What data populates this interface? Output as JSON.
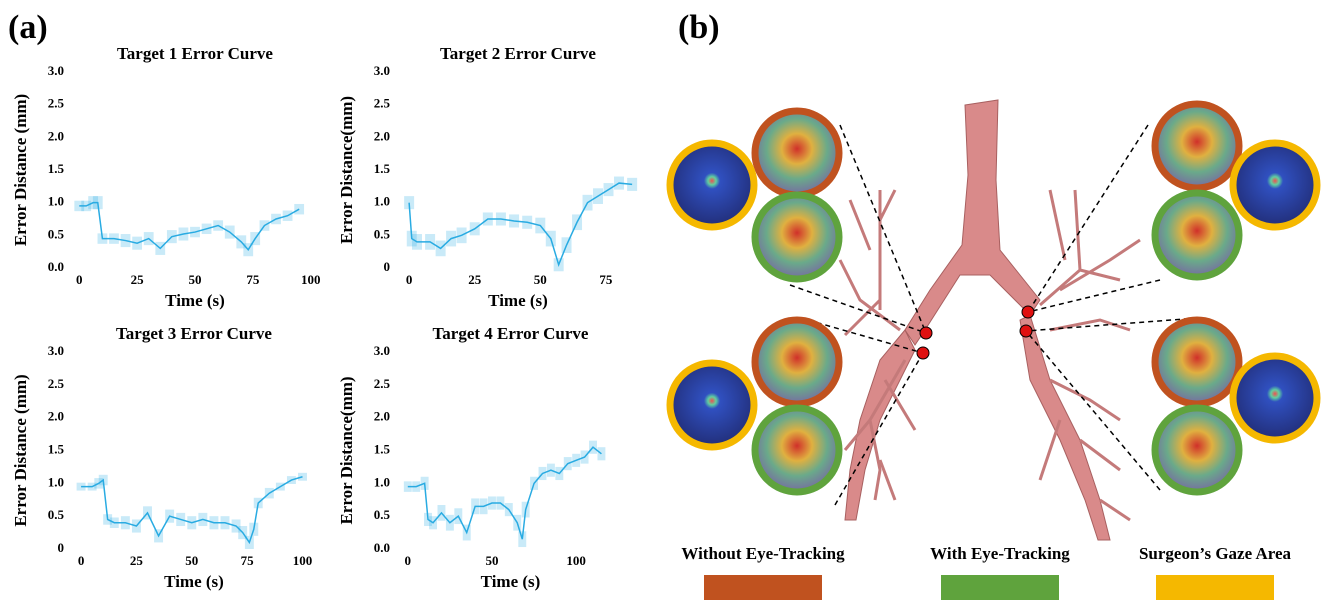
{
  "panel_a_label": "(a)",
  "chart_data": [
    {
      "type": "line",
      "title": "Target 1 Error Curve",
      "x_label": "Time (s)",
      "y_label": "Error Distance (mm)",
      "xlim": [
        -4,
        104
      ],
      "ylim": [
        0,
        3
      ],
      "xticks": [
        0,
        25,
        50,
        75,
        100
      ],
      "yticks": [
        {
          "value": 0,
          "label": "0.0"
        },
        {
          "value": 0.5,
          "label": "0.5"
        },
        {
          "value": 1,
          "label": "1.0"
        },
        {
          "value": 1.5,
          "label": "1.5"
        },
        {
          "value": 2,
          "label": "2.0"
        },
        {
          "value": 2.5,
          "label": "2.5"
        },
        {
          "value": 3,
          "label": "3.0"
        }
      ],
      "x": [
        0,
        3,
        6,
        8,
        10,
        15,
        20,
        25,
        30,
        35,
        40,
        45,
        50,
        55,
        60,
        65,
        70,
        73,
        76,
        80,
        85,
        90,
        95
      ],
      "series": [
        {
          "color": "#29abe2",
          "values": [
            0.95,
            0.95,
            1.0,
            1.0,
            0.45,
            0.45,
            0.42,
            0.38,
            0.45,
            0.3,
            0.48,
            0.52,
            0.55,
            0.6,
            0.65,
            0.55,
            0.4,
            0.28,
            0.45,
            0.65,
            0.75,
            0.8,
            0.9
          ],
          "errors": [
            0.08,
            0.08,
            0.1,
            0.1,
            0.08,
            0.08,
            0.1,
            0.1,
            0.1,
            0.1,
            0.1,
            0.1,
            0.08,
            0.08,
            0.08,
            0.1,
            0.1,
            0.1,
            0.1,
            0.08,
            0.08,
            0.08,
            0.08
          ]
        }
      ]
    },
    {
      "type": "line",
      "title": "Target 2 Error Curve",
      "x_label": "Time (s)",
      "y_label": "Error Distance(mm)",
      "xlim": [
        -5,
        88
      ],
      "ylim": [
        0,
        3
      ],
      "xticks": [
        0,
        25,
        50,
        75
      ],
      "yticks": [
        0,
        0.5,
        {
          "value": 1,
          "label": "1.0"
        },
        1.5,
        {
          "value": 2,
          "label": "2.0"
        },
        2.5,
        {
          "value": 3,
          "label": "3.0"
        }
      ],
      "x": [
        0,
        1,
        3,
        8,
        12,
        16,
        20,
        25,
        30,
        35,
        40,
        45,
        50,
        54,
        57,
        60,
        64,
        68,
        72,
        76,
        80,
        85
      ],
      "series": [
        {
          "color": "#29abe2",
          "values": [
            1.0,
            0.45,
            0.4,
            0.4,
            0.3,
            0.45,
            0.5,
            0.6,
            0.75,
            0.75,
            0.72,
            0.7,
            0.65,
            0.45,
            0.05,
            0.35,
            0.7,
            1.0,
            1.1,
            1.2,
            1.3,
            1.28
          ],
          "errors": [
            0.1,
            0.12,
            0.12,
            0.12,
            0.12,
            0.12,
            0.12,
            0.1,
            0.1,
            0.1,
            0.1,
            0.1,
            0.12,
            0.12,
            0.1,
            0.12,
            0.12,
            0.12,
            0.12,
            0.1,
            0.1,
            0.1
          ]
        }
      ]
    },
    {
      "type": "line",
      "title": "Target 3 Error Curve",
      "x_label": "Time (s)",
      "y_label": "Error Distance (mm)",
      "xlim": [
        -5,
        107
      ],
      "ylim": [
        0,
        3
      ],
      "xticks": [
        0,
        25,
        50,
        75,
        100
      ],
      "yticks": [
        0,
        0.5,
        {
          "value": 1,
          "label": "1.0"
        },
        1.5,
        {
          "value": 2,
          "label": "2.0"
        },
        2.5,
        {
          "value": 3,
          "label": "3.0"
        }
      ],
      "x": [
        0,
        5,
        8,
        10,
        12,
        15,
        20,
        25,
        30,
        35,
        40,
        45,
        50,
        55,
        60,
        65,
        70,
        73,
        76,
        78,
        80,
        85,
        90,
        95,
        100
      ],
      "series": [
        {
          "color": "#29abe2",
          "values": [
            0.95,
            0.95,
            1.0,
            1.05,
            0.45,
            0.4,
            0.4,
            0.35,
            0.55,
            0.2,
            0.5,
            0.45,
            0.4,
            0.45,
            0.4,
            0.4,
            0.35,
            0.25,
            0.1,
            0.3,
            0.7,
            0.85,
            0.95,
            1.05,
            1.1
          ],
          "errors": [
            0.06,
            0.06,
            0.08,
            0.08,
            0.08,
            0.08,
            0.1,
            0.1,
            0.1,
            0.1,
            0.1,
            0.1,
            0.1,
            0.1,
            0.1,
            0.1,
            0.1,
            0.1,
            0.1,
            0.1,
            0.08,
            0.08,
            0.06,
            0.06,
            0.06
          ]
        }
      ]
    },
    {
      "type": "line",
      "title": "Target 4 Error Curve",
      "x_label": "Time (s)",
      "y_label": "Error Distance(mm)",
      "xlim": [
        -7,
        129
      ],
      "ylim": [
        0,
        3
      ],
      "xticks": [
        0,
        50,
        100
      ],
      "yticks": [
        {
          "value": 0,
          "label": "0.0"
        },
        {
          "value": 0.5,
          "label": "0.5"
        },
        {
          "value": 1,
          "label": "1.0"
        },
        {
          "value": 1.5,
          "label": "1.5"
        },
        {
          "value": 2,
          "label": "2.0"
        },
        {
          "value": 2.5,
          "label": "2.5"
        },
        {
          "value": 3,
          "label": "3.0"
        }
      ],
      "x": [
        0,
        5,
        10,
        12,
        15,
        20,
        25,
        30,
        35,
        40,
        45,
        50,
        55,
        60,
        65,
        68,
        70,
        75,
        80,
        85,
        90,
        95,
        100,
        105,
        110,
        115
      ],
      "series": [
        {
          "color": "#29abe2",
          "values": [
            0.95,
            0.95,
            1.0,
            0.45,
            0.4,
            0.55,
            0.4,
            0.5,
            0.25,
            0.65,
            0.65,
            0.7,
            0.7,
            0.6,
            0.4,
            0.15,
            0.6,
            1.0,
            1.15,
            1.2,
            1.15,
            1.3,
            1.35,
            1.4,
            1.55,
            1.45
          ],
          "errors": [
            0.08,
            0.08,
            0.1,
            0.1,
            0.1,
            0.12,
            0.12,
            0.12,
            0.12,
            0.12,
            0.12,
            0.1,
            0.1,
            0.1,
            0.12,
            0.12,
            0.12,
            0.1,
            0.1,
            0.1,
            0.1,
            0.1,
            0.1,
            0.1,
            0.1,
            0.1
          ]
        }
      ]
    }
  ],
  "panel_b": {
    "label": "(b)",
    "legend": [
      {
        "name": "Without Eye-Tracking",
        "color": "#c0521f"
      },
      {
        "name": "With Eye-Tracking",
        "color": "#5fa33d"
      },
      {
        "name": "Surgeon’s Gaze Area",
        "color": "#f5b800"
      }
    ]
  }
}
